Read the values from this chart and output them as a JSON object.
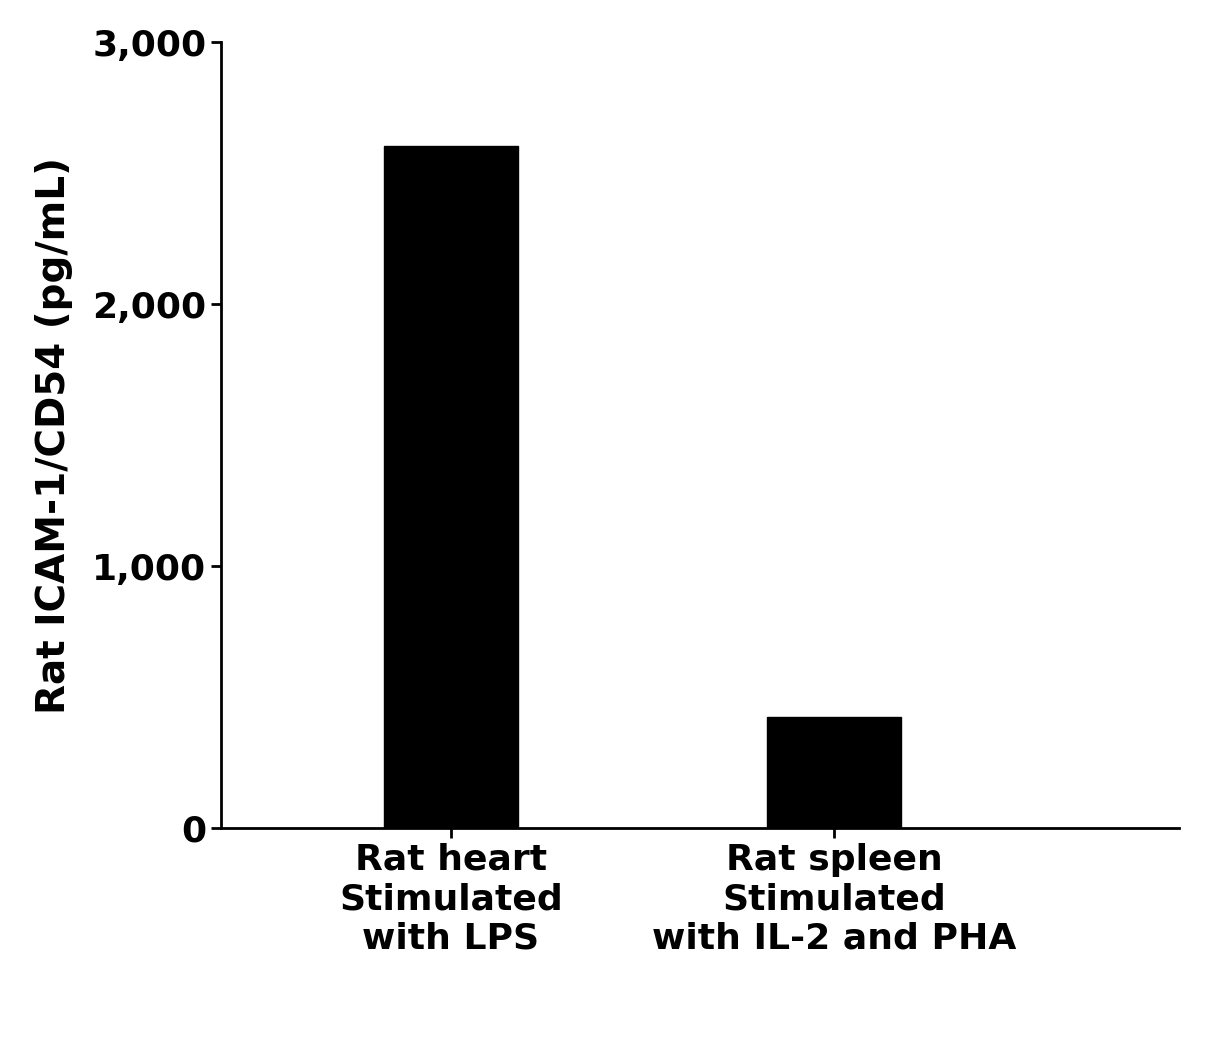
{
  "categories": [
    "Rat heart\nStimulated\nwith LPS",
    "Rat spleen\nStimulated\nwith IL-2 and PHA"
  ],
  "values": [
    2606.5,
    423.9
  ],
  "bar_color": "#000000",
  "ylabel": "Rat ICAM-1/CD54 (pg/mL)",
  "ylim": [
    0,
    3000
  ],
  "yticks": [
    0,
    1000,
    2000,
    3000
  ],
  "ytick_labels": [
    "0",
    "1,000",
    "2,000",
    "3,000"
  ],
  "bar_width": 0.35,
  "background_color": "#ffffff",
  "ylabel_fontsize": 28,
  "tick_fontsize": 26,
  "xtick_fontsize": 26
}
